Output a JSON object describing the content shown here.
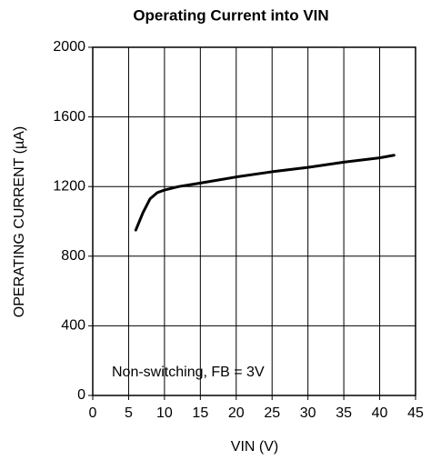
{
  "chart_data": {
    "type": "line",
    "title": "Operating Current into VIN",
    "x_label": "VIN (V)",
    "y_label": "OPERATING CURRENT (µA)",
    "annotation": "Non-switching, FB = 3V",
    "x": [
      6,
      7,
      8,
      9,
      10,
      12,
      15,
      20,
      25,
      30,
      35,
      40,
      42
    ],
    "series": [
      {
        "name": "Operating current",
        "color": "#000000",
        "values": [
          950,
          1050,
          1130,
          1165,
          1180,
          1200,
          1220,
          1255,
          1285,
          1310,
          1340,
          1365,
          1380
        ]
      }
    ],
    "xlim": [
      0,
      45
    ],
    "xticks": [
      0,
      5,
      10,
      15,
      20,
      25,
      30,
      35,
      40,
      45
    ],
    "ylim": [
      0,
      2000
    ],
    "yticks": [
      0,
      400,
      800,
      1200,
      1600,
      2000
    ],
    "grid": true
  }
}
